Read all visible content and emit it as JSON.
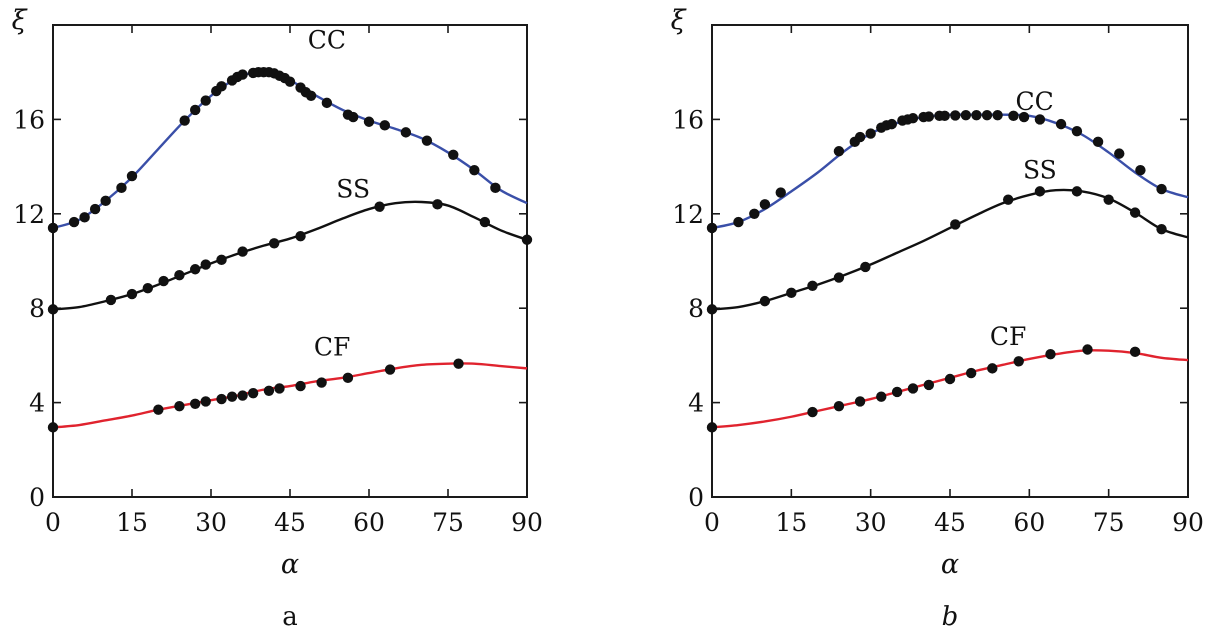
{
  "chart_data": [
    {
      "type": "line",
      "panel_label": "a",
      "panel_label_italic": false,
      "xlabel": "α",
      "ylabel": "ξ",
      "xlim": [
        0,
        90
      ],
      "ylim": [
        0,
        20
      ],
      "xticks": [
        0,
        15,
        30,
        45,
        60,
        75,
        90
      ],
      "xtick_labels": [
        "0",
        "15",
        "30",
        "45",
        "60",
        "75",
        "90"
      ],
      "yticks": [
        0,
        4,
        8,
        12,
        16
      ],
      "ytick_labels": [
        "0",
        "4",
        "8",
        "12",
        "16"
      ],
      "grid": false,
      "series": [
        {
          "name": "CC",
          "color": "#3a4fa8",
          "label_at": [
            52,
            19.0
          ],
          "curve": [
            [
              0,
              11.4
            ],
            [
              5,
              11.75
            ],
            [
              10,
              12.55
            ],
            [
              15,
              13.55
            ],
            [
              20,
              14.75
            ],
            [
              25,
              15.95
            ],
            [
              30,
              17.0
            ],
            [
              35,
              17.75
            ],
            [
              40,
              18.05
            ],
            [
              45,
              17.65
            ],
            [
              50,
              17.0
            ],
            [
              55,
              16.4
            ],
            [
              60,
              15.95
            ],
            [
              65,
              15.6
            ],
            [
              70,
              15.2
            ],
            [
              75,
              14.6
            ],
            [
              80,
              13.85
            ],
            [
              85,
              13.0
            ],
            [
              90,
              12.45
            ]
          ],
          "points": [
            [
              0,
              11.4
            ],
            [
              4,
              11.65
            ],
            [
              6,
              11.85
            ],
            [
              8,
              12.2
            ],
            [
              10,
              12.55
            ],
            [
              13,
              13.1
            ],
            [
              15,
              13.6
            ],
            [
              25,
              15.95
            ],
            [
              27,
              16.4
            ],
            [
              29,
              16.8
            ],
            [
              31,
              17.2
            ],
            [
              32,
              17.4
            ],
            [
              34,
              17.65
            ],
            [
              35,
              17.8
            ],
            [
              36,
              17.9
            ],
            [
              38,
              17.97
            ],
            [
              39,
              18.0
            ],
            [
              40,
              18.0
            ],
            [
              41,
              18.0
            ],
            [
              42,
              17.95
            ],
            [
              43,
              17.85
            ],
            [
              44,
              17.75
            ],
            [
              45,
              17.6
            ],
            [
              47,
              17.35
            ],
            [
              48,
              17.15
            ],
            [
              49,
              17.0
            ],
            [
              52,
              16.7
            ],
            [
              56,
              16.2
            ],
            [
              57,
              16.1
            ],
            [
              60,
              15.9
            ],
            [
              63,
              15.75
            ],
            [
              67,
              15.45
            ],
            [
              71,
              15.1
            ],
            [
              76,
              14.5
            ],
            [
              80,
              13.85
            ],
            [
              84,
              13.1
            ]
          ]
        },
        {
          "name": "SS",
          "color": "#111111",
          "label_at": [
            57,
            12.7
          ],
          "curve": [
            [
              0,
              7.95
            ],
            [
              5,
              8.05
            ],
            [
              10,
              8.3
            ],
            [
              15,
              8.6
            ],
            [
              20,
              9.0
            ],
            [
              25,
              9.45
            ],
            [
              30,
              9.9
            ],
            [
              35,
              10.3
            ],
            [
              40,
              10.65
            ],
            [
              45,
              10.95
            ],
            [
              50,
              11.35
            ],
            [
              55,
              11.8
            ],
            [
              60,
              12.2
            ],
            [
              65,
              12.45
            ],
            [
              70,
              12.5
            ],
            [
              75,
              12.35
            ],
            [
              80,
              11.85
            ],
            [
              85,
              11.3
            ],
            [
              90,
              10.9
            ]
          ],
          "points": [
            [
              0,
              7.95
            ],
            [
              11,
              8.35
            ],
            [
              15,
              8.6
            ],
            [
              18,
              8.85
            ],
            [
              21,
              9.15
            ],
            [
              24,
              9.4
            ],
            [
              27,
              9.65
            ],
            [
              29,
              9.85
            ],
            [
              32,
              10.05
            ],
            [
              36,
              10.4
            ],
            [
              42,
              10.75
            ],
            [
              47,
              11.05
            ],
            [
              62,
              12.3
            ],
            [
              73,
              12.4
            ],
            [
              82,
              11.65
            ],
            [
              90,
              10.9
            ]
          ]
        },
        {
          "name": "CF",
          "color": "#e0232e",
          "label_at": [
            53,
            6.0
          ],
          "curve": [
            [
              0,
              2.95
            ],
            [
              5,
              3.05
            ],
            [
              10,
              3.25
            ],
            [
              15,
              3.45
            ],
            [
              20,
              3.7
            ],
            [
              25,
              3.9
            ],
            [
              30,
              4.1
            ],
            [
              35,
              4.3
            ],
            [
              40,
              4.55
            ],
            [
              45,
              4.7
            ],
            [
              50,
              4.9
            ],
            [
              55,
              5.05
            ],
            [
              60,
              5.25
            ],
            [
              65,
              5.45
            ],
            [
              70,
              5.6
            ],
            [
              75,
              5.65
            ],
            [
              80,
              5.65
            ],
            [
              85,
              5.55
            ],
            [
              90,
              5.45
            ]
          ],
          "points": [
            [
              0,
              2.95
            ],
            [
              20,
              3.7
            ],
            [
              24,
              3.85
            ],
            [
              27,
              3.95
            ],
            [
              29,
              4.05
            ],
            [
              32,
              4.15
            ],
            [
              34,
              4.25
            ],
            [
              36,
              4.3
            ],
            [
              38,
              4.4
            ],
            [
              41,
              4.5
            ],
            [
              43,
              4.6
            ],
            [
              47,
              4.7
            ],
            [
              51,
              4.85
            ],
            [
              56,
              5.05
            ],
            [
              64,
              5.4
            ],
            [
              77,
              5.65
            ]
          ]
        }
      ]
    },
    {
      "type": "line",
      "panel_label": "b",
      "panel_label_italic": true,
      "xlabel": "α",
      "ylabel": "ξ",
      "xlim": [
        0,
        90
      ],
      "ylim": [
        0,
        20
      ],
      "xticks": [
        0,
        15,
        30,
        45,
        60,
        75,
        90
      ],
      "xtick_labels": [
        "0",
        "15",
        "30",
        "45",
        "60",
        "75",
        "90"
      ],
      "yticks": [
        0,
        4,
        8,
        12,
        16
      ],
      "ytick_labels": [
        "0",
        "4",
        "8",
        "12",
        "16"
      ],
      "grid": false,
      "series": [
        {
          "name": "CC",
          "color": "#3a4fa8",
          "label_at": [
            61,
            16.4
          ],
          "curve": [
            [
              0,
              11.4
            ],
            [
              5,
              11.65
            ],
            [
              10,
              12.2
            ],
            [
              15,
              12.95
            ],
            [
              20,
              13.75
            ],
            [
              25,
              14.65
            ],
            [
              30,
              15.4
            ],
            [
              35,
              15.85
            ],
            [
              40,
              16.1
            ],
            [
              45,
              16.2
            ],
            [
              50,
              16.2
            ],
            [
              55,
              16.2
            ],
            [
              60,
              16.15
            ],
            [
              65,
              15.85
            ],
            [
              70,
              15.35
            ],
            [
              75,
              14.6
            ],
            [
              80,
              13.75
            ],
            [
              85,
              13.05
            ],
            [
              90,
              12.7
            ]
          ],
          "points": [
            [
              0,
              11.4
            ],
            [
              5,
              11.65
            ],
            [
              8,
              12.0
            ],
            [
              10,
              12.4
            ],
            [
              13,
              12.9
            ],
            [
              24,
              14.65
            ],
            [
              27,
              15.05
            ],
            [
              28,
              15.25
            ],
            [
              30,
              15.4
            ],
            [
              32,
              15.65
            ],
            [
              33,
              15.75
            ],
            [
              34,
              15.8
            ],
            [
              36,
              15.95
            ],
            [
              37,
              16.0
            ],
            [
              38,
              16.05
            ],
            [
              40,
              16.1
            ],
            [
              41,
              16.12
            ],
            [
              43,
              16.15
            ],
            [
              44,
              16.15
            ],
            [
              46,
              16.17
            ],
            [
              48,
              16.18
            ],
            [
              50,
              16.18
            ],
            [
              52,
              16.18
            ],
            [
              54,
              16.18
            ],
            [
              57,
              16.15
            ],
            [
              59,
              16.1
            ],
            [
              62,
              16.0
            ],
            [
              66,
              15.8
            ],
            [
              69,
              15.5
            ],
            [
              73,
              15.05
            ],
            [
              77,
              14.55
            ],
            [
              81,
              13.85
            ],
            [
              85,
              13.05
            ]
          ]
        },
        {
          "name": "SS",
          "color": "#111111",
          "label_at": [
            62,
            13.5
          ],
          "curve": [
            [
              0,
              7.95
            ],
            [
              5,
              8.05
            ],
            [
              10,
              8.3
            ],
            [
              15,
              8.65
            ],
            [
              20,
              9.0
            ],
            [
              25,
              9.4
            ],
            [
              30,
              9.85
            ],
            [
              35,
              10.35
            ],
            [
              40,
              10.85
            ],
            [
              45,
              11.4
            ],
            [
              50,
              11.95
            ],
            [
              55,
              12.45
            ],
            [
              60,
              12.8
            ],
            [
              65,
              13.0
            ],
            [
              70,
              12.95
            ],
            [
              75,
              12.65
            ],
            [
              80,
              12.05
            ],
            [
              85,
              11.35
            ],
            [
              90,
              11.0
            ]
          ],
          "points": [
            [
              0,
              7.95
            ],
            [
              10,
              8.3
            ],
            [
              15,
              8.65
            ],
            [
              19,
              8.95
            ],
            [
              24,
              9.3
            ],
            [
              29,
              9.75
            ],
            [
              46,
              11.55
            ],
            [
              56,
              12.6
            ],
            [
              62,
              12.95
            ],
            [
              69,
              12.95
            ],
            [
              75,
              12.6
            ],
            [
              80,
              12.05
            ],
            [
              85,
              11.35
            ]
          ]
        },
        {
          "name": "CF",
          "color": "#e0232e",
          "label_at": [
            56,
            6.45
          ],
          "curve": [
            [
              0,
              2.95
            ],
            [
              5,
              3.05
            ],
            [
              10,
              3.2
            ],
            [
              15,
              3.4
            ],
            [
              20,
              3.65
            ],
            [
              25,
              3.9
            ],
            [
              30,
              4.15
            ],
            [
              35,
              4.45
            ],
            [
              40,
              4.75
            ],
            [
              45,
              5.05
            ],
            [
              50,
              5.35
            ],
            [
              55,
              5.6
            ],
            [
              60,
              5.85
            ],
            [
              65,
              6.05
            ],
            [
              70,
              6.2
            ],
            [
              75,
              6.2
            ],
            [
              80,
              6.1
            ],
            [
              85,
              5.9
            ],
            [
              90,
              5.8
            ]
          ],
          "points": [
            [
              0,
              2.95
            ],
            [
              19,
              3.6
            ],
            [
              24,
              3.85
            ],
            [
              28,
              4.05
            ],
            [
              32,
              4.25
            ],
            [
              35,
              4.45
            ],
            [
              38,
              4.6
            ],
            [
              41,
              4.75
            ],
            [
              45,
              5.0
            ],
            [
              49,
              5.25
            ],
            [
              53,
              5.45
            ],
            [
              58,
              5.75
            ],
            [
              64,
              6.05
            ],
            [
              71,
              6.25
            ],
            [
              80,
              6.15
            ]
          ]
        }
      ]
    }
  ]
}
